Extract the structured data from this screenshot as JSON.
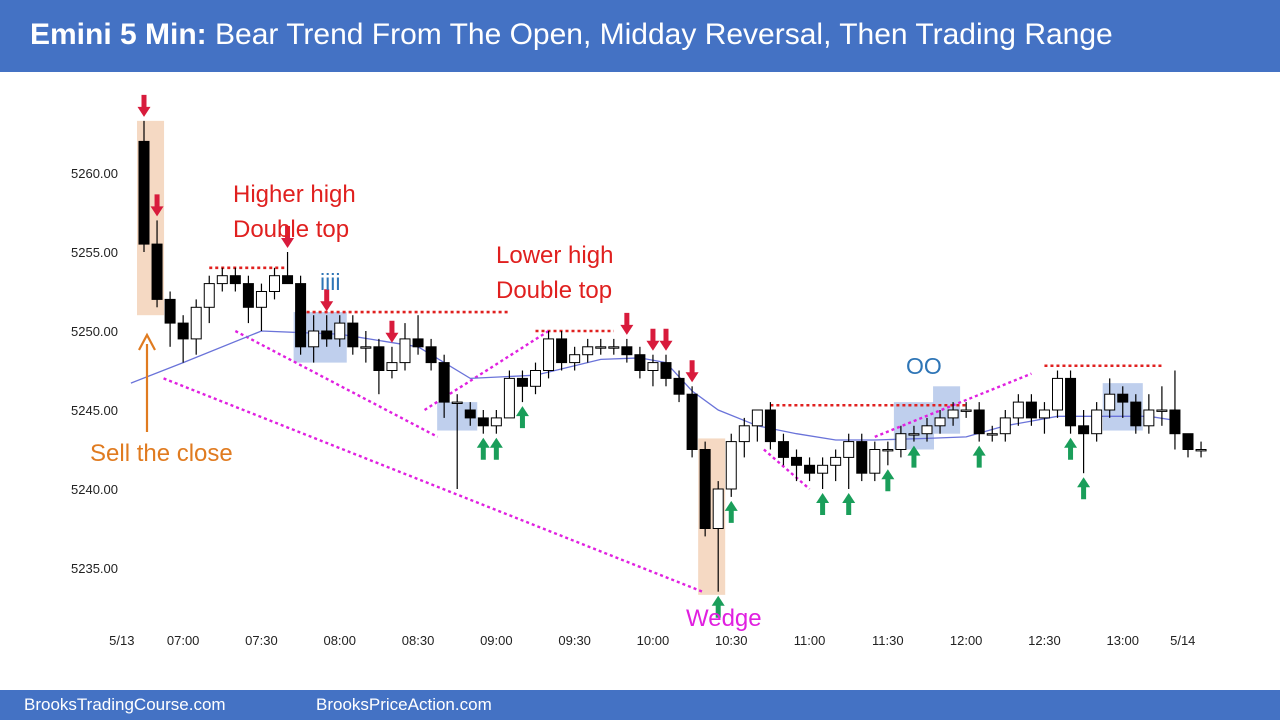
{
  "header": {
    "title_bold": "Emini 5 Min:",
    "title_rest": "Bear Trend From The Open, Midday Reversal, Then Trading Range"
  },
  "footer": {
    "left_link": "BrooksTradingCourse.com",
    "right_link": "BrooksPriceAction.com"
  },
  "colors": {
    "header_bg": "#4472c4",
    "bull_body": "#ffffff",
    "bear_body": "#000000",
    "ema": "#6a73d9",
    "annotation_red": "#e0201f",
    "annotation_blue": "#2e75b6",
    "annotation_orange": "#e07b20",
    "wedge_magenta": "#e020e0",
    "up_arrow": "#1a9e5a",
    "down_arrow": "#d81b3c",
    "highlight_blue": "#b4c7ea",
    "highlight_tan": "#f3d2b8"
  },
  "chart_data": {
    "type": "candlestick",
    "y_ticks": [
      "5235.00",
      "5240.00",
      "5245.00",
      "5250.00",
      "5255.00",
      "5260.00"
    ],
    "y_tick_values": [
      5235,
      5240,
      5245,
      5250,
      5255,
      5260
    ],
    "ylim": [
      5232.5,
      5263.5
    ],
    "x_ticks": [
      "5/13",
      "07:00",
      "07:30",
      "08:00",
      "08:30",
      "09:00",
      "09:30",
      "10:00",
      "10:30",
      "11:00",
      "11:30",
      "12:00",
      "12:30",
      "13:00",
      "5/14"
    ],
    "x_tick_bar_index": [
      -1.7,
      3,
      9,
      15,
      21,
      27,
      33,
      39,
      45,
      51,
      57,
      63,
      69,
      75,
      79.6
    ],
    "bars": [
      {
        "o": 5262.0,
        "h": 5263.3,
        "l": 5255.0,
        "c": 5255.5
      },
      {
        "o": 5255.5,
        "h": 5257.0,
        "l": 5251.5,
        "c": 5252.0
      },
      {
        "o": 5252.0,
        "h": 5252.5,
        "l": 5249.0,
        "c": 5250.5
      },
      {
        "o": 5250.5,
        "h": 5251.0,
        "l": 5248.0,
        "c": 5249.5
      },
      {
        "o": 5249.5,
        "h": 5252.0,
        "l": 5248.5,
        "c": 5251.5
      },
      {
        "o": 5251.5,
        "h": 5253.5,
        "l": 5250.5,
        "c": 5253.0
      },
      {
        "o": 5253.0,
        "h": 5254.0,
        "l": 5252.5,
        "c": 5253.5
      },
      {
        "o": 5253.5,
        "h": 5254.0,
        "l": 5252.5,
        "c": 5253.0
      },
      {
        "o": 5253.0,
        "h": 5253.5,
        "l": 5250.5,
        "c": 5251.5
      },
      {
        "o": 5251.5,
        "h": 5253.0,
        "l": 5250.0,
        "c": 5252.5
      },
      {
        "o": 5252.5,
        "h": 5254.0,
        "l": 5252.0,
        "c": 5253.5
      },
      {
        "o": 5253.5,
        "h": 5255.0,
        "l": 5253.0,
        "c": 5253.0
      },
      {
        "o": 5253.0,
        "h": 5253.5,
        "l": 5248.5,
        "c": 5249.0
      },
      {
        "o": 5249.0,
        "h": 5251.0,
        "l": 5248.0,
        "c": 5250.0
      },
      {
        "o": 5250.0,
        "h": 5251.0,
        "l": 5249.0,
        "c": 5249.5
      },
      {
        "o": 5249.5,
        "h": 5251.0,
        "l": 5249.0,
        "c": 5250.5
      },
      {
        "o": 5250.5,
        "h": 5251.0,
        "l": 5248.5,
        "c": 5249.0
      },
      {
        "o": 5249.0,
        "h": 5250.0,
        "l": 5248.0,
        "c": 5249.0
      },
      {
        "o": 5249.0,
        "h": 5249.5,
        "l": 5246.0,
        "c": 5247.5
      },
      {
        "o": 5247.5,
        "h": 5249.0,
        "l": 5247.0,
        "c": 5248.0
      },
      {
        "o": 5248.0,
        "h": 5250.5,
        "l": 5247.5,
        "c": 5249.5
      },
      {
        "o": 5249.5,
        "h": 5251.0,
        "l": 5248.5,
        "c": 5249.0
      },
      {
        "o": 5249.0,
        "h": 5249.5,
        "l": 5247.5,
        "c": 5248.0
      },
      {
        "o": 5248.0,
        "h": 5248.5,
        "l": 5244.5,
        "c": 5245.5
      },
      {
        "o": 5245.5,
        "h": 5246.0,
        "l": 5240.0,
        "c": 5245.5
      },
      {
        "o": 5245.0,
        "h": 5245.5,
        "l": 5244.0,
        "c": 5244.5
      },
      {
        "o": 5244.5,
        "h": 5245.0,
        "l": 5243.5,
        "c": 5244.0
      },
      {
        "o": 5244.0,
        "h": 5245.0,
        "l": 5243.5,
        "c": 5244.5
      },
      {
        "o": 5244.5,
        "h": 5247.5,
        "l": 5244.5,
        "c": 5247.0
      },
      {
        "o": 5247.0,
        "h": 5247.5,
        "l": 5245.5,
        "c": 5246.5
      },
      {
        "o": 5246.5,
        "h": 5248.0,
        "l": 5246.0,
        "c": 5247.5
      },
      {
        "o": 5247.5,
        "h": 5250.0,
        "l": 5247.0,
        "c": 5249.5
      },
      {
        "o": 5249.5,
        "h": 5250.0,
        "l": 5247.5,
        "c": 5248.0
      },
      {
        "o": 5248.0,
        "h": 5249.0,
        "l": 5247.5,
        "c": 5248.5
      },
      {
        "o": 5248.5,
        "h": 5249.5,
        "l": 5248.0,
        "c": 5249.0
      },
      {
        "o": 5249.0,
        "h": 5249.5,
        "l": 5248.5,
        "c": 5249.0
      },
      {
        "o": 5249.0,
        "h": 5249.5,
        "l": 5248.5,
        "c": 5249.0
      },
      {
        "o": 5249.0,
        "h": 5249.5,
        "l": 5248.0,
        "c": 5248.5
      },
      {
        "o": 5248.5,
        "h": 5249.0,
        "l": 5247.0,
        "c": 5247.5
      },
      {
        "o": 5247.5,
        "h": 5248.5,
        "l": 5246.5,
        "c": 5248.0
      },
      {
        "o": 5248.0,
        "h": 5248.5,
        "l": 5246.5,
        "c": 5247.0
      },
      {
        "o": 5247.0,
        "h": 5247.5,
        "l": 5245.5,
        "c": 5246.0
      },
      {
        "o": 5246.0,
        "h": 5246.5,
        "l": 5242.0,
        "c": 5242.5
      },
      {
        "o": 5242.5,
        "h": 5243.0,
        "l": 5237.0,
        "c": 5237.5
      },
      {
        "o": 5237.5,
        "h": 5240.5,
        "l": 5233.5,
        "c": 5240.0
      },
      {
        "o": 5240.0,
        "h": 5243.5,
        "l": 5239.5,
        "c": 5243.0
      },
      {
        "o": 5243.0,
        "h": 5244.5,
        "l": 5242.0,
        "c": 5244.0
      },
      {
        "o": 5244.0,
        "h": 5245.0,
        "l": 5243.0,
        "c": 5245.0
      },
      {
        "o": 5245.0,
        "h": 5245.5,
        "l": 5242.5,
        "c": 5243.0
      },
      {
        "o": 5243.0,
        "h": 5243.5,
        "l": 5241.5,
        "c": 5242.0
      },
      {
        "o": 5242.0,
        "h": 5242.5,
        "l": 5240.5,
        "c": 5241.5
      },
      {
        "o": 5241.5,
        "h": 5242.0,
        "l": 5240.5,
        "c": 5241.0
      },
      {
        "o": 5241.0,
        "h": 5242.0,
        "l": 5240.0,
        "c": 5241.5
      },
      {
        "o": 5241.5,
        "h": 5242.5,
        "l": 5240.5,
        "c": 5242.0
      },
      {
        "o": 5242.0,
        "h": 5243.5,
        "l": 5240.0,
        "c": 5243.0
      },
      {
        "o": 5243.0,
        "h": 5243.5,
        "l": 5240.5,
        "c": 5241.0
      },
      {
        "o": 5241.0,
        "h": 5243.0,
        "l": 5240.5,
        "c": 5242.5
      },
      {
        "o": 5242.5,
        "h": 5243.0,
        "l": 5241.5,
        "c": 5242.5
      },
      {
        "o": 5242.5,
        "h": 5244.0,
        "l": 5242.0,
        "c": 5243.5
      },
      {
        "o": 5243.5,
        "h": 5244.0,
        "l": 5243.0,
        "c": 5243.5
      },
      {
        "o": 5243.5,
        "h": 5244.5,
        "l": 5243.0,
        "c": 5244.0
      },
      {
        "o": 5244.0,
        "h": 5245.0,
        "l": 5243.5,
        "c": 5244.5
      },
      {
        "o": 5244.5,
        "h": 5245.5,
        "l": 5244.0,
        "c": 5245.0
      },
      {
        "o": 5245.0,
        "h": 5245.5,
        "l": 5244.5,
        "c": 5245.0
      },
      {
        "o": 5245.0,
        "h": 5245.5,
        "l": 5243.0,
        "c": 5243.5
      },
      {
        "o": 5243.5,
        "h": 5244.0,
        "l": 5243.0,
        "c": 5243.5
      },
      {
        "o": 5243.5,
        "h": 5245.0,
        "l": 5243.0,
        "c": 5244.5
      },
      {
        "o": 5244.5,
        "h": 5246.0,
        "l": 5244.0,
        "c": 5245.5
      },
      {
        "o": 5245.5,
        "h": 5246.0,
        "l": 5244.0,
        "c": 5244.5
      },
      {
        "o": 5244.5,
        "h": 5245.5,
        "l": 5243.5,
        "c": 5245.0
      },
      {
        "o": 5245.0,
        "h": 5247.5,
        "l": 5244.5,
        "c": 5247.0
      },
      {
        "o": 5247.0,
        "h": 5247.5,
        "l": 5243.5,
        "c": 5244.0
      },
      {
        "o": 5244.0,
        "h": 5245.0,
        "l": 5241.0,
        "c": 5243.5
      },
      {
        "o": 5243.5,
        "h": 5245.5,
        "l": 5243.0,
        "c": 5245.0
      },
      {
        "o": 5245.0,
        "h": 5247.0,
        "l": 5244.5,
        "c": 5246.0
      },
      {
        "o": 5246.0,
        "h": 5246.5,
        "l": 5244.5,
        "c": 5245.5
      },
      {
        "o": 5245.5,
        "h": 5246.0,
        "l": 5243.5,
        "c": 5244.0
      },
      {
        "o": 5244.0,
        "h": 5246.0,
        "l": 5243.5,
        "c": 5245.0
      },
      {
        "o": 5245.0,
        "h": 5246.5,
        "l": 5244.0,
        "c": 5245.0
      },
      {
        "o": 5245.0,
        "h": 5247.5,
        "l": 5242.5,
        "c": 5243.5
      },
      {
        "o": 5243.5,
        "h": 5243.5,
        "l": 5242.0,
        "c": 5242.5
      },
      {
        "o": 5242.5,
        "h": 5243.0,
        "l": 5242.0,
        "c": 5242.5
      }
    ],
    "ema": [
      [
        -1.0,
        5246.7
      ],
      [
        3,
        5248.0
      ],
      [
        9,
        5250.0
      ],
      [
        15,
        5249.8
      ],
      [
        21,
        5249.0
      ],
      [
        25,
        5247.0
      ],
      [
        30,
        5247.2
      ],
      [
        35,
        5248.2
      ],
      [
        38,
        5248.3
      ],
      [
        40,
        5248.0
      ],
      [
        42,
        5246.2
      ],
      [
        44,
        5245.0
      ],
      [
        47,
        5244.0
      ],
      [
        50,
        5243.5
      ],
      [
        53,
        5243.1
      ],
      [
        56,
        5243.1
      ],
      [
        60,
        5243.2
      ],
      [
        63,
        5243.3
      ],
      [
        66,
        5244.0
      ],
      [
        68,
        5244.3
      ],
      [
        70,
        5244.6
      ],
      [
        73,
        5244.6
      ],
      [
        77,
        5244.6
      ],
      [
        79.4,
        5244.3
      ]
    ],
    "labels": {
      "higher_high": [
        "Higher high",
        "Double top"
      ],
      "lower_high": [
        "Lower high",
        "Double top"
      ],
      "iiii": "iiii",
      "oo": "OO",
      "sell_the_close": "Sell the close",
      "wedge": "Wedge"
    },
    "resistance_lines": [
      {
        "from": 5,
        "to": 11,
        "price": 5254.0
      },
      {
        "from": 12,
        "to": 28,
        "price": 5251.2
      },
      {
        "from": 30,
        "to": 36,
        "price": 5250.0
      },
      {
        "from": 48,
        "to": 63,
        "price": 5245.3
      },
      {
        "from": 69,
        "to": 78,
        "price": 5247.8
      }
    ],
    "wedge_lines": [
      {
        "from": [
          1.5,
          5247.0
        ],
        "to": [
          42.8,
          5233.5
        ]
      },
      {
        "from": [
          7,
          5250.0
        ],
        "to": [
          22.5,
          5243.3
        ]
      },
      {
        "from": [
          21.5,
          5245.0
        ],
        "to": [
          31,
          5250.0
        ]
      },
      {
        "from": [
          47.5,
          5242.5
        ],
        "to": [
          51,
          5240.0
        ]
      },
      {
        "from": [
          56,
          5243.3
        ],
        "to": [
          68,
          5247.3
        ]
      }
    ],
    "shaded_zones": [
      {
        "kind": "tan",
        "from": 0,
        "to": 1,
        "top": 5263.3,
        "bottom": 5251.0
      },
      {
        "kind": "tan",
        "from": 43,
        "to": 44,
        "top": 5243.2,
        "bottom": 5233.3
      },
      {
        "kind": "blue",
        "from": 12,
        "to": 15,
        "top": 5251.2,
        "bottom": 5248.0
      },
      {
        "kind": "blue",
        "from": 23,
        "to": 25,
        "top": 5245.5,
        "bottom": 5243.7
      },
      {
        "kind": "blue",
        "from": 58,
        "to": 60,
        "top": 5245.5,
        "bottom": 5242.5
      },
      {
        "kind": "blue",
        "from": 61,
        "to": 62,
        "top": 5246.5,
        "bottom": 5243.5
      },
      {
        "kind": "blue",
        "from": 74,
        "to": 76,
        "top": 5246.7,
        "bottom": 5243.7
      }
    ],
    "down_arrows": [
      0,
      1,
      11,
      14,
      19,
      37,
      39,
      40,
      42
    ],
    "up_arrows": [
      26,
      27,
      29,
      44,
      45,
      52,
      54,
      57,
      59,
      64,
      71,
      72
    ]
  }
}
